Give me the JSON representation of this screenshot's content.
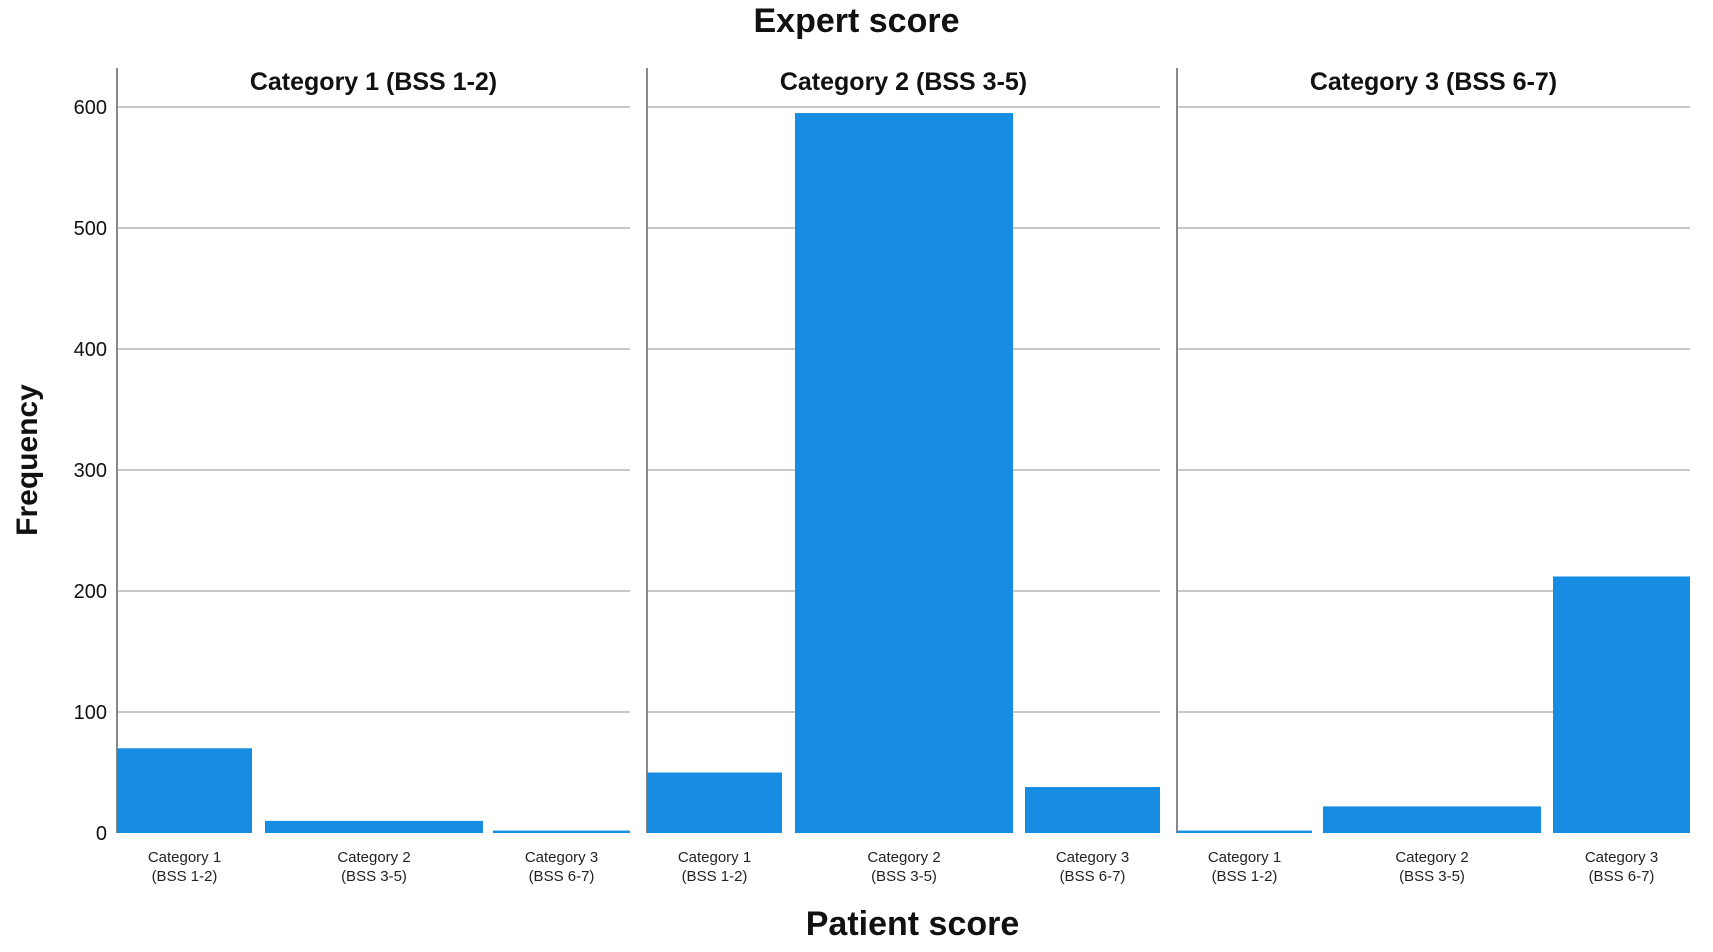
{
  "chart_data": {
    "type": "bar",
    "title": "Expert score",
    "xlabel": "Patient score",
    "ylabel": "Frequency",
    "ylim": [
      0,
      600
    ],
    "yticks": [
      "0",
      "100",
      "200",
      "300",
      "400",
      "500",
      "600"
    ],
    "grid": true,
    "bar_color": "#168de2",
    "categories": [
      [
        "Category 1",
        "(BSS 1-2)"
      ],
      [
        "Category 2",
        "(BSS 3-5)"
      ],
      [
        "Category 3",
        "(BSS 6-7)"
      ]
    ],
    "panels": [
      {
        "name": "Category 1 (BSS 1-2)",
        "values": [
          70,
          10,
          2
        ]
      },
      {
        "name": "Category 2 (BSS 3-5)",
        "values": [
          50,
          595,
          38
        ]
      },
      {
        "name": "Category 3 (BSS 6-7)",
        "values": [
          2,
          22,
          212
        ]
      }
    ]
  }
}
